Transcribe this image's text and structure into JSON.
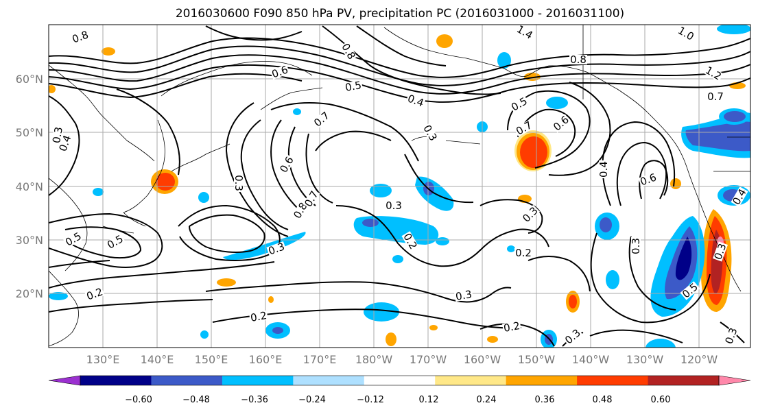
{
  "title": "2016030600 F090 850 hPa PV, precipitation PC (2016031000 - 2016031100)",
  "colors": {
    "bins": [
      "#9b30d0",
      "#000088",
      "#3c5ac8",
      "#00bfff",
      "#aee0ff",
      "#ffffff",
      "#ffe888",
      "#ffa500",
      "#ff3c00",
      "#b22222",
      "#ff88aa"
    ],
    "contour": "#000000",
    "grid": "#aaaaaa",
    "coast": "#000000"
  },
  "axes": {
    "lat_labels": [
      "60°N",
      "50°N",
      "40°N",
      "30°N",
      "20°N"
    ],
    "lon_labels": [
      "130°E",
      "140°E",
      "150°E",
      "160°E",
      "170°E",
      "180°W",
      "170°W",
      "160°W",
      "150°W",
      "140°W",
      "130°W",
      "120°W"
    ]
  },
  "colorbar": {
    "tick_labels": [
      "−0.60",
      "−0.48",
      "−0.36",
      "−0.24",
      "−0.12",
      "0.12",
      "0.24",
      "0.36",
      "0.48",
      "0.60"
    ]
  },
  "contour_labels": [
    {
      "id": "c1",
      "text": "0.8"
    },
    {
      "id": "c2",
      "text": "0.8"
    },
    {
      "id": "c3",
      "text": "1.4"
    },
    {
      "id": "c4",
      "text": "1.0"
    },
    {
      "id": "c5",
      "text": "0.8"
    },
    {
      "id": "c6",
      "text": "0.6"
    },
    {
      "id": "c7",
      "text": "0.5"
    },
    {
      "id": "c8",
      "text": "0.4"
    },
    {
      "id": "c9",
      "text": "1.2"
    },
    {
      "id": "c10",
      "text": "0.7"
    },
    {
      "id": "c11",
      "text": "0.7"
    },
    {
      "id": "c12",
      "text": "0.3"
    },
    {
      "id": "c13",
      "text": "0.5"
    },
    {
      "id": "c14",
      "text": "0.7"
    },
    {
      "id": "c15",
      "text": "0.6"
    },
    {
      "id": "c16",
      "text": "0.4"
    },
    {
      "id": "c17",
      "text": "0.3"
    },
    {
      "id": "c18",
      "text": "0.6"
    },
    {
      "id": "c19",
      "text": "0.3"
    },
    {
      "id": "c20",
      "text": "0.8"
    },
    {
      "id": "c21",
      "text": "0.7"
    },
    {
      "id": "c22",
      "text": "0.3"
    },
    {
      "id": "c23",
      "text": "0.4"
    },
    {
      "id": "c24",
      "text": "0.3"
    },
    {
      "id": "c25",
      "text": "0.5"
    },
    {
      "id": "c26",
      "text": "0.5"
    },
    {
      "id": "c27",
      "text": "0.3"
    },
    {
      "id": "c28",
      "text": "0.2"
    },
    {
      "id": "c29",
      "text": "0.3"
    },
    {
      "id": "c30",
      "text": "0.2"
    },
    {
      "id": "c31",
      "text": "0.6"
    },
    {
      "id": "c32",
      "text": "0.3"
    },
    {
      "id": "c33",
      "text": "0.5"
    },
    {
      "id": "c34",
      "text": "0.2"
    },
    {
      "id": "c35",
      "text": "0.2"
    },
    {
      "id": "c36",
      "text": "0.3"
    },
    {
      "id": "c37",
      "text": "0.2"
    },
    {
      "id": "c38",
      "text": "0.3"
    },
    {
      "id": "c39",
      "text": "0.4"
    },
    {
      "id": "c40",
      "text": "0.3"
    }
  ]
}
